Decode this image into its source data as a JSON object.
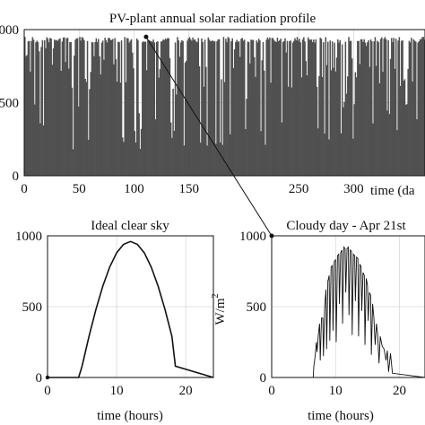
{
  "chart_data": [
    {
      "type": "bar",
      "title": "PV-plant annual solar radiation profile",
      "xlabel": "time (da",
      "ylabel": "",
      "xlim": [
        0,
        365
      ],
      "ylim": [
        0,
        1000
      ],
      "x_ticks": [
        "0",
        "50",
        "100",
        "150",
        "250",
        "300"
      ],
      "x_tick_values": [
        0,
        50,
        100,
        150,
        250,
        300
      ],
      "y_ticks": [
        "0",
        "500",
        "000"
      ],
      "y_tick_values": [
        0,
        500,
        1000
      ],
      "grid": true,
      "color": "#505050",
      "daily_peak_typical": 950,
      "marker": {
        "day": 111,
        "value": 950,
        "label": "Apr 21st"
      }
    },
    {
      "type": "line",
      "title": "Ideal clear sky",
      "xlabel": "time (hours)",
      "ylabel": "",
      "xlim": [
        0,
        24
      ],
      "ylim": [
        0,
        1000
      ],
      "x_ticks": [
        "0",
        "10",
        "20"
      ],
      "x_tick_values": [
        0,
        10,
        20
      ],
      "y_ticks": [
        "0",
        "500",
        "1000"
      ],
      "y_tick_values": [
        0,
        500,
        1000
      ],
      "grid": true,
      "color": "#111111",
      "x": [
        0,
        4.5,
        5,
        6,
        7,
        8,
        9,
        10,
        11,
        12,
        13,
        14,
        15,
        16,
        17,
        18,
        18.5,
        24
      ],
      "y": [
        0,
        0,
        80,
        290,
        480,
        645,
        780,
        880,
        940,
        960,
        940,
        880,
        780,
        645,
        480,
        290,
        80,
        0
      ]
    },
    {
      "type": "line",
      "title": "Cloudy day - Apr 21st",
      "xlabel": "time (hours)",
      "ylabel": "W/m",
      "ylabel_sup": "2",
      "xlim": [
        0,
        24
      ],
      "ylim": [
        0,
        1000
      ],
      "x_ticks": [
        "0",
        "10",
        "20"
      ],
      "x_tick_values": [
        0,
        10,
        20
      ],
      "y_ticks": [
        "0",
        "500",
        "1000"
      ],
      "y_tick_values": [
        0,
        500,
        1000
      ],
      "grid": true,
      "color": "#111111",
      "x": [
        0,
        6.5,
        6.6,
        6.8,
        7,
        7.1,
        7.3,
        7.5,
        7.6,
        7.8,
        8,
        8.1,
        8.3,
        8.5,
        8.6,
        8.8,
        9,
        9.1,
        9.3,
        9.5,
        9.6,
        9.8,
        10,
        10.1,
        10.3,
        10.5,
        10.6,
        10.8,
        11,
        11.1,
        11.3,
        11.5,
        11.6,
        11.8,
        12,
        12.1,
        12.3,
        12.5,
        12.6,
        12.8,
        13,
        13.1,
        13.3,
        13.5,
        13.6,
        13.8,
        14,
        14.1,
        14.3,
        14.5,
        14.6,
        14.8,
        15,
        15.1,
        15.3,
        15.5,
        15.6,
        15.8,
        16,
        16.2,
        16.4,
        16.6,
        16.8,
        17,
        17.3,
        17.6,
        17.9,
        18.1,
        18.3,
        18.6,
        18.9,
        24
      ],
      "y": [
        0,
        0,
        80,
        150,
        250,
        180,
        300,
        380,
        120,
        420,
        420,
        150,
        500,
        620,
        200,
        680,
        720,
        260,
        780,
        790,
        330,
        820,
        830,
        250,
        860,
        870,
        520,
        880,
        900,
        380,
        920,
        910,
        600,
        910,
        920,
        440,
        900,
        890,
        300,
        870,
        860,
        540,
        850,
        840,
        290,
        800,
        780,
        470,
        740,
        720,
        230,
        700,
        650,
        400,
        600,
        580,
        160,
        520,
        420,
        230,
        380,
        300,
        100,
        290,
        220,
        200,
        120,
        190,
        40,
        170,
        30,
        0
      ]
    }
  ]
}
